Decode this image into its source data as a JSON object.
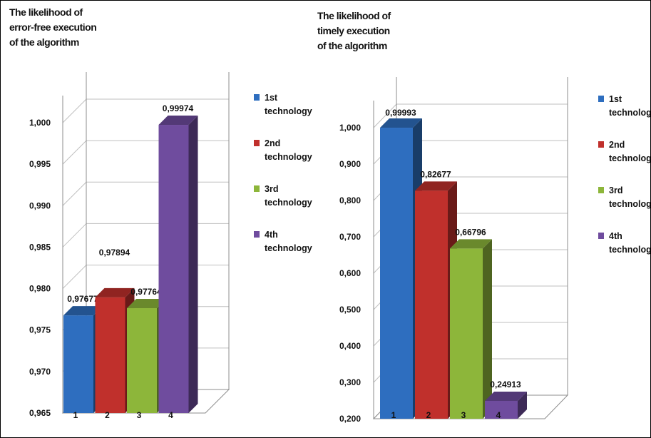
{
  "chart_data": [
    {
      "type": "bar",
      "title_lines": [
        "The likelihood of",
        "error-free execution",
        "of the algorithm"
      ],
      "categories": [
        "1",
        "2",
        "3",
        "4"
      ],
      "values": [
        0.97677,
        0.97894,
        0.97764,
        0.99974
      ],
      "value_labels": [
        "0,97677",
        "0,97894",
        "0,97764",
        "0,99974"
      ],
      "ylim": [
        0.965,
        1.0
      ],
      "yticks": [
        "0,965",
        "0,970",
        "0,975",
        "0,980",
        "0,985",
        "0,990",
        "0,995",
        "1,000"
      ],
      "legend": [
        {
          "line1": "1st",
          "line2": "technology",
          "color": "#2E6EBF"
        },
        {
          "line1": "2nd",
          "line2": "technology",
          "color": "#C0302C"
        },
        {
          "line1": "3rd",
          "line2": "technology",
          "color": "#8DB63A"
        },
        {
          "line1": "4th",
          "line2": "technology",
          "color": "#6F4C9E"
        }
      ],
      "legend_position": "right",
      "grid": true
    },
    {
      "type": "bar",
      "title_lines": [
        "The likelihood of",
        "timely execution",
        "of the algorithm"
      ],
      "categories": [
        "1",
        "2",
        "3",
        "4"
      ],
      "values": [
        0.99993,
        0.82677,
        0.66796,
        0.24913
      ],
      "value_labels": [
        "0,99993",
        "0,82677",
        "0,66796",
        "0,24913"
      ],
      "ylim": [
        0.2,
        1.0
      ],
      "yticks": [
        "0,200",
        "0,300",
        "0,400",
        "0,500",
        "0,600",
        "0,700",
        "0,800",
        "0,900",
        "1,000"
      ],
      "legend": [
        {
          "line1": "1st",
          "line2": "technology",
          "color": "#2E6EBF"
        },
        {
          "line1": "2nd",
          "line2": "technology",
          "color": "#C0302C"
        },
        {
          "line1": "3rd",
          "line2": "technology",
          "color": "#8DB63A"
        },
        {
          "line1": "4th",
          "line2": "technology",
          "color": "#6F4C9E"
        }
      ],
      "legend_position": "right",
      "grid": true
    }
  ]
}
